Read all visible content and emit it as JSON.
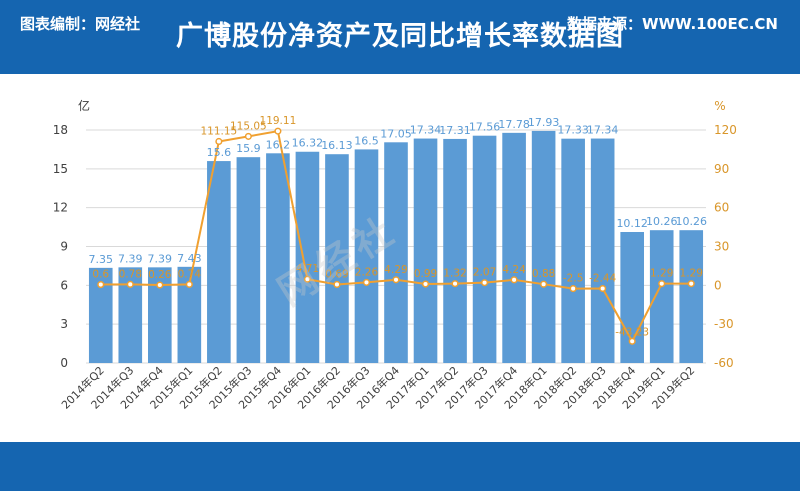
{
  "header": {
    "title": "广博股份净资产及同比增长率数据图"
  },
  "footer": {
    "source_label": "图表编制：网经社",
    "data_source": "数据来源：WWW.100EC.CN"
  },
  "watermark": {
    "text": "网经社"
  },
  "colors": {
    "bar": "#5b9bd5",
    "bar_label": "#5b9bd5",
    "line": "#f0a030",
    "line_label": "#d9962a",
    "axis_text": "#404040",
    "grid": "#d9d9d9",
    "header_bg": "#1565b0"
  },
  "chart_data": {
    "type": "bar+line",
    "categories": [
      "2014年Q2",
      "2014年Q3",
      "2014年Q4",
      "2015年Q1",
      "2015年Q2",
      "2015年Q3",
      "2015年Q4",
      "2016年Q1",
      "2016年Q2",
      "2016年Q3",
      "2016年Q4",
      "2017年Q1",
      "2017年Q2",
      "2017年Q3",
      "2017年Q4",
      "2018年Q1",
      "2018年Q2",
      "2018年Q3",
      "2018年Q4",
      "2019年Q1",
      "2019年Q2"
    ],
    "series": [
      {
        "type": "bar",
        "axis": "left",
        "values": [
          7.35,
          7.39,
          7.39,
          7.43,
          15.6,
          15.9,
          16.2,
          16.32,
          16.13,
          16.5,
          17.05,
          17.34,
          17.31,
          17.56,
          17.78,
          17.93,
          17.33,
          17.34,
          10.12,
          10.26,
          10.26
        ],
        "labels": [
          "7.35",
          "7.39",
          "7.39",
          "7.43",
          "15.6",
          "15.9",
          "16.2",
          "16.32",
          "16.13",
          "16.5",
          "17.05",
          "17.34",
          "17.31",
          "17.56",
          "17.78",
          "17.93",
          "17.33",
          "17.34",
          "10.12",
          "10.26",
          "10.26"
        ]
      },
      {
        "type": "line",
        "axis": "right",
        "values": [
          0.6,
          0.78,
          0.26,
          0.74,
          111.15,
          115.05,
          119.11,
          4.71,
          0.69,
          2.26,
          4.29,
          0.99,
          1.32,
          2.07,
          4.24,
          0.88,
          -2.5,
          -2.44,
          -43.23,
          1.29,
          1.29
        ],
        "labels": [
          "0.6",
          "0.78",
          "0.26",
          "0.74",
          "111.15",
          "115.05",
          "119.11",
          "4.71",
          "0.69",
          "2.26",
          "4.29",
          "0.99",
          "1.32",
          "2.07",
          "4.24",
          "0.88",
          "-2.5",
          "-2.44",
          "-43.23",
          "1.29",
          "1.29"
        ]
      }
    ],
    "y_left": {
      "unit": "亿",
      "min": 0,
      "max": 18,
      "ticks": [
        0,
        3,
        6,
        9,
        12,
        15,
        18
      ]
    },
    "y_right": {
      "unit": "%",
      "min": -60,
      "max": 120,
      "ticks": [
        -60,
        -30,
        0,
        30,
        60,
        90,
        120
      ]
    },
    "grid": true,
    "legend": "none"
  }
}
